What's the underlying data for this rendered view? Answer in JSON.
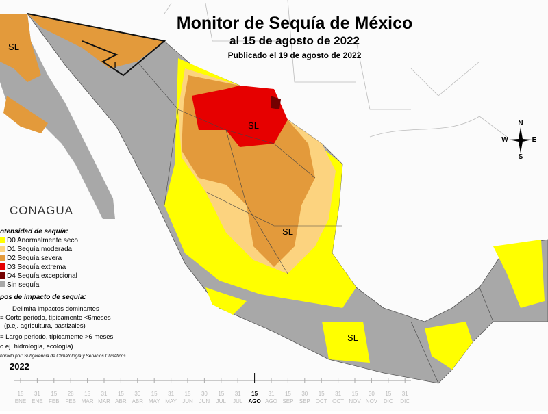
{
  "header": {
    "title": "Monitor de Sequía de México",
    "subtitle": "al 15 de agosto de 2022",
    "published": "Publicado el 19 de agosto de 2022"
  },
  "logo": "CONAGUA",
  "legend": {
    "title": "ntensidad de sequía:",
    "items": [
      {
        "label": "D0 Anormalmente seco",
        "color": "#ffff00"
      },
      {
        "label": "D1 Sequía moderada",
        "color": "#fcd37f"
      },
      {
        "label": "D2 Sequía severa",
        "color": "#e39a3b"
      },
      {
        "label": "D3 Sequía extrema",
        "color": "#e60000"
      },
      {
        "label": "D4 Sequía excepcional",
        "color": "#730000"
      },
      {
        "label": "Sin sequía",
        "color": "#a8a8a8"
      }
    ]
  },
  "impact": {
    "title": "pos de impacto de sequía:",
    "lines": [
      "Delimita impactos dominantes",
      "= Corto periodo, típicamente <6meses",
      "(p.ej. agricultura, pastizales)",
      "= Largo periodo, típicamente >6 meses",
      "o.ej. hidrología, ecología)"
    ]
  },
  "credit": "borado por: Subgerencia de Climatología y Servicios Climáticos",
  "map_labels": [
    "SL",
    "L",
    "SL",
    "SL",
    "SL"
  ],
  "compass": [
    "N",
    "S",
    "E",
    "W"
  ],
  "timeline": {
    "year": "2022",
    "days": [
      "15",
      "31",
      "15",
      "28",
      "15",
      "31",
      "15",
      "30",
      "15",
      "31",
      "15",
      "30",
      "15",
      "31",
      "15",
      "31",
      "15",
      "30",
      "15",
      "31",
      "15",
      "30",
      "15",
      "31"
    ],
    "months": [
      "ENE",
      "ENE",
      "FEB",
      "FEB",
      "MAR",
      "MAR",
      "ABR",
      "ABR",
      "MAY",
      "MAY",
      "JUN",
      "JUN",
      "JUL",
      "JUL",
      "AGO",
      "AGO",
      "SEP",
      "SEP",
      "OCT",
      "OCT",
      "NOV",
      "NOV",
      "DIC",
      "DIC"
    ],
    "current": 14
  }
}
